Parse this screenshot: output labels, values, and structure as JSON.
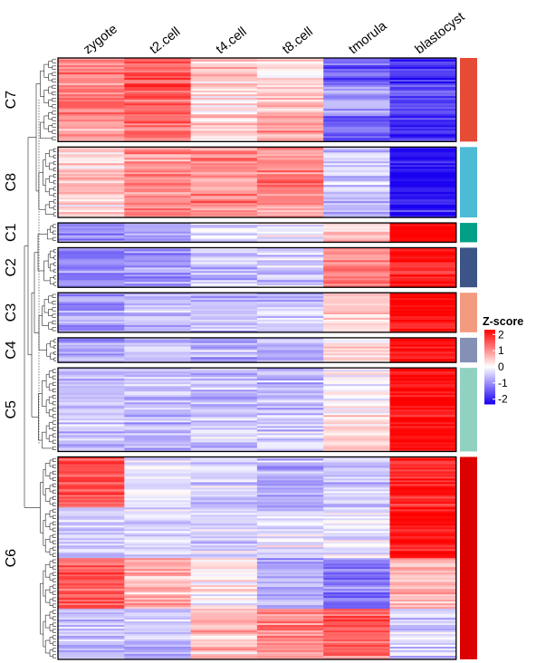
{
  "chart_data": {
    "type": "heatmap",
    "columns": [
      "zygote",
      "t2.cell",
      "t4.cell",
      "t8.cell",
      "tmorula",
      "blastocyst"
    ],
    "clusters": [
      {
        "name": "C7",
        "color": "#E64B35",
        "rows": 95,
        "pattern": [
          [
            1.0,
            1.4,
            0.4,
            0.2,
            -1.3,
            -1.8
          ],
          [
            1.2,
            1.5,
            0.2,
            0.5,
            -0.8,
            -1.6
          ],
          [
            0.8,
            1.3,
            0.6,
            0.8,
            -1.5,
            -1.9
          ]
        ]
      },
      {
        "name": "C8",
        "color": "#4DBBD5",
        "rows": 80,
        "pattern": [
          [
            0.3,
            0.9,
            1.0,
            1.1,
            -0.3,
            -2.2
          ],
          [
            0.6,
            1.0,
            0.8,
            1.2,
            -0.5,
            -2.3
          ],
          [
            0.4,
            1.0,
            1.1,
            1.0,
            -0.6,
            -2.1
          ]
        ]
      },
      {
        "name": "C1",
        "color": "#00A087",
        "rows": 22,
        "pattern": [
          [
            -1.2,
            -0.8,
            -0.3,
            -0.3,
            0.4,
            2.2
          ]
        ]
      },
      {
        "name": "C2",
        "color": "#3C5488",
        "rows": 45,
        "pattern": [
          [
            -1.1,
            -1.0,
            -0.6,
            -0.4,
            1.0,
            2.0
          ],
          [
            -1.0,
            -0.9,
            -0.7,
            -0.5,
            1.2,
            2.1
          ]
        ]
      },
      {
        "name": "C3",
        "color": "#F39B7F",
        "rows": 45,
        "pattern": [
          [
            -0.8,
            -0.6,
            -0.6,
            -0.5,
            0.6,
            2.2
          ],
          [
            -0.9,
            -0.7,
            -0.5,
            -0.4,
            0.3,
            2.1
          ]
        ]
      },
      {
        "name": "C4",
        "color": "#8491B4",
        "rows": 28,
        "pattern": [
          [
            -0.7,
            -0.7,
            -0.7,
            -0.6,
            0.2,
            2.2
          ]
        ]
      },
      {
        "name": "C5",
        "color": "#91D1C2",
        "rows": 95,
        "pattern": [
          [
            -0.6,
            -0.6,
            -0.6,
            -0.6,
            0.1,
            2.3
          ],
          [
            -0.5,
            -0.6,
            -0.6,
            -0.5,
            0.3,
            2.3
          ]
        ]
      },
      {
        "name": "C6",
        "color": "#DC0000",
        "rows": 230,
        "pattern": [
          [
            1.6,
            -0.2,
            -0.4,
            -0.8,
            -0.5,
            2.0
          ],
          [
            -0.5,
            -0.4,
            -0.5,
            -0.3,
            -0.2,
            2.2
          ],
          [
            1.5,
            0.8,
            0.1,
            -0.7,
            -1.2,
            0.6
          ],
          [
            -0.6,
            -0.5,
            0.6,
            1.0,
            1.3,
            -0.4
          ]
        ]
      }
    ],
    "legend": {
      "title": "Z-score",
      "ticks": [
        2,
        1,
        0,
        -1,
        -2
      ],
      "range": [
        -2.3,
        2.3
      ],
      "placement": "right"
    },
    "colorscale": {
      "low": "#1A00F0",
      "mid": "#FFFFFF",
      "high": "#FF0000"
    }
  }
}
